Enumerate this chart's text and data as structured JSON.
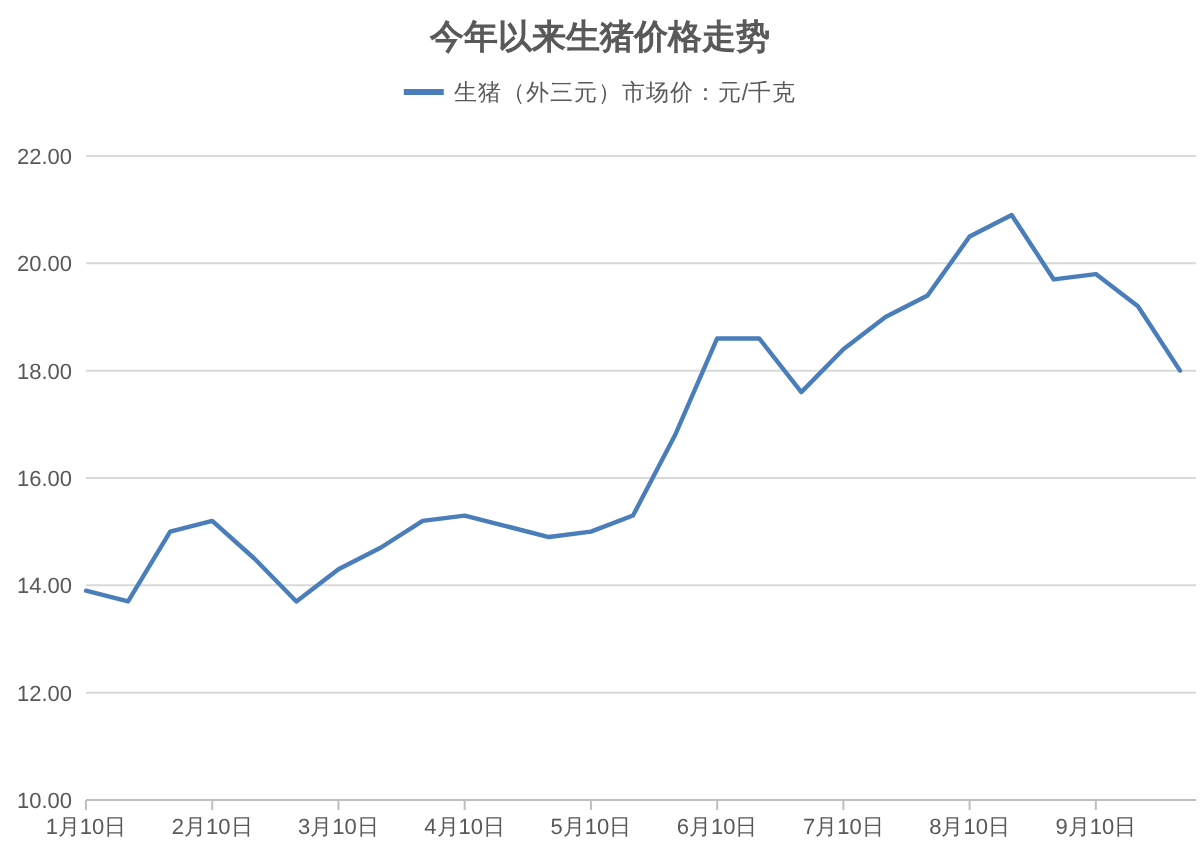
{
  "chart_data": {
    "type": "line",
    "title": "今年以来生猪价格走势",
    "categories": [
      "1月10日",
      null,
      null,
      "2月10日",
      null,
      null,
      "3月10日",
      null,
      null,
      "4月10日",
      null,
      null,
      "5月10日",
      null,
      null,
      "6月10日",
      null,
      null,
      "7月10日",
      null,
      null,
      "8月10日",
      null,
      null,
      "9月10日",
      null,
      null
    ],
    "series": [
      {
        "name": "生猪（外三元）市场价：元/千克",
        "color": "#4a7ebb",
        "values": [
          13.9,
          13.7,
          15.0,
          15.2,
          14.5,
          13.7,
          14.3,
          14.7,
          15.2,
          15.3,
          15.1,
          14.9,
          15.0,
          15.3,
          16.8,
          18.6,
          18.6,
          17.6,
          18.4,
          19.0,
          19.4,
          20.5,
          20.9,
          19.7,
          19.8,
          19.2,
          18.0
        ]
      }
    ],
    "ylim": [
      10,
      22
    ],
    "yticks": [
      {
        "value": 10,
        "label": "10.00"
      },
      {
        "value": 12,
        "label": "12.00"
      },
      {
        "value": 14,
        "label": "14.00"
      },
      {
        "value": 16,
        "label": "16.00"
      },
      {
        "value": 18,
        "label": "18.00"
      },
      {
        "value": 20,
        "label": "20.00"
      },
      {
        "value": 22,
        "label": "22.00"
      }
    ],
    "grid": "y",
    "legend": "top",
    "marker": "none",
    "line_style": "solid"
  }
}
